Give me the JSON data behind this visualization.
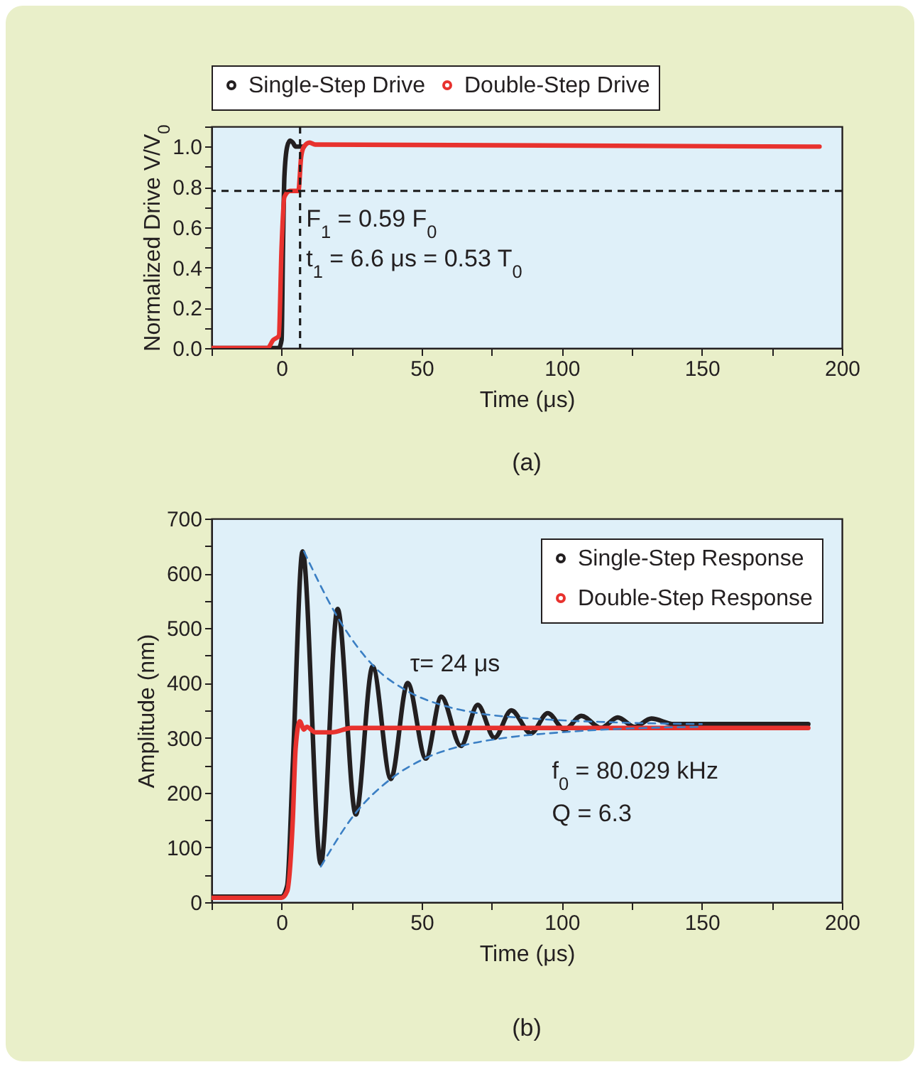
{
  "chart_data": [
    {
      "type": "line",
      "xlabel": "Time (μs)",
      "ylabel": "Normalized Drive V/V$_{0}$",
      "xlim": [
        -25,
        200
      ],
      "ylim": [
        0,
        1.1
      ],
      "xticks": [
        {
          "value": -25,
          "label": null
        },
        0,
        {
          "value": 25,
          "label": null
        },
        50,
        {
          "value": 75,
          "label": null
        },
        100,
        {
          "value": 125,
          "label": null
        },
        150,
        {
          "value": 175,
          "label": null
        },
        200
      ],
      "yticks": [
        {
          "value": 0,
          "label": "0.0"
        },
        {
          "value": 0.1,
          "label": null
        },
        {
          "value": 0.2,
          "label": "0.2"
        },
        {
          "value": 0.3,
          "label": null
        },
        {
          "value": 0.4,
          "label": "0.4"
        },
        {
          "value": 0.5,
          "label": null
        },
        {
          "value": 0.6,
          "label": "0.6"
        },
        {
          "value": 0.7,
          "label": null
        },
        {
          "value": 0.8,
          "label": "0.8"
        },
        {
          "value": 0.9,
          "label": null
        },
        {
          "value": 1,
          "label": "1.0"
        },
        {
          "value": 1.1,
          "label": null
        }
      ],
      "legend": "top",
      "marker": "none",
      "ref_lines": [
        {
          "axis": "y",
          "value": 0.78,
          "color": "#1a1a1a",
          "line_style": "dashed"
        },
        {
          "axis": "x",
          "value": 6.6,
          "color": "#1a1a1a",
          "line_style": "dashed"
        }
      ],
      "annotations": [
        "F$_{1}$ = 0.59 F$_{0}$",
        "t$_{1}$ = 6.6 μs = 0.53 T$_{0}$",
        "(a)"
      ],
      "series": [
        {
          "name": "Single-Step Drive",
          "color": "#231f20",
          "x": [
            -25,
            -1,
            0,
            0.5,
            1,
            2,
            3,
            4,
            5,
            8
          ],
          "values": [
            0,
            0,
            0.04,
            0.5,
            0.85,
            1.0,
            1.03,
            1.02,
            1.0,
            1.0
          ]
        },
        {
          "name": "Double-Step Drive",
          "color": "#e8322e",
          "x": [
            -25,
            -5,
            -3,
            -1,
            0,
            1,
            3,
            6,
            7,
            8,
            10,
            12,
            192
          ],
          "values": [
            0,
            0,
            0.04,
            0.06,
            0.5,
            0.75,
            0.78,
            0.78,
            0.95,
            1.0,
            1.02,
            1.01,
            1.0
          ]
        }
      ]
    },
    {
      "type": "line",
      "xlabel": "Time (μs)",
      "ylabel": "Amplitude (nm)",
      "xlim": [
        -25,
        200
      ],
      "ylim": [
        0,
        700
      ],
      "xticks": [
        {
          "value": -25,
          "label": null
        },
        0,
        {
          "value": 25,
          "label": null
        },
        50,
        {
          "value": 75,
          "label": null
        },
        100,
        {
          "value": 125,
          "label": null
        },
        150,
        {
          "value": 175,
          "label": null
        },
        200
      ],
      "yticks": [
        0,
        {
          "value": 50,
          "label": null
        },
        100,
        {
          "value": 150,
          "label": null
        },
        200,
        {
          "value": 250,
          "label": null
        },
        300,
        {
          "value": 350,
          "label": null
        },
        400,
        {
          "value": 450,
          "label": null
        },
        500,
        {
          "value": 550,
          "label": null
        },
        600,
        {
          "value": 650,
          "label": null
        },
        700
      ],
      "legend": "top right",
      "marker": "none",
      "annotations": [
        "τ= 24 μs",
        "f$_{0}$ = 80.029 kHz",
        "Q = 6.3",
        "(b)"
      ],
      "series": [
        {
          "name": "Single-Step Response",
          "color": "#231f20",
          "x": [
            -25,
            0,
            2,
            4,
            7.5,
            14,
            20,
            26.5,
            32.5,
            39,
            45,
            51.5,
            57,
            64,
            70,
            76,
            82,
            89,
            95,
            101,
            107,
            114,
            120,
            126,
            132,
            140,
            188
          ],
          "values": [
            10,
            10,
            30,
            250,
            640,
            70,
            535,
            160,
            430,
            225,
            400,
            262,
            375,
            285,
            360,
            300,
            350,
            308,
            345,
            315,
            340,
            318,
            337,
            320,
            335,
            325,
            325
          ]
        },
        {
          "name": "Double-Step Response",
          "color": "#e8322e",
          "x": [
            -25,
            0,
            2,
            4,
            5,
            6.5,
            8,
            9,
            12,
            18,
            25,
            35,
            188
          ],
          "values": [
            8,
            8,
            20,
            150,
            280,
            330,
            315,
            320,
            310,
            310,
            318,
            318,
            318
          ]
        },
        {
          "color": "#3b7fc4",
          "line_style": "dashed",
          "x": [
            8,
            20,
            33,
            45,
            57,
            70,
            90,
            120,
            150
          ],
          "values": [
            640,
            520,
            430,
            385,
            360,
            345,
            335,
            328,
            325
          ]
        },
        {
          "color": "#3b7fc4",
          "line_style": "dashed",
          "x": [
            14,
            26,
            39,
            51,
            64,
            80,
            100,
            130,
            150
          ],
          "values": [
            65,
            160,
            225,
            262,
            285,
            300,
            310,
            318,
            320
          ]
        }
      ]
    }
  ]
}
